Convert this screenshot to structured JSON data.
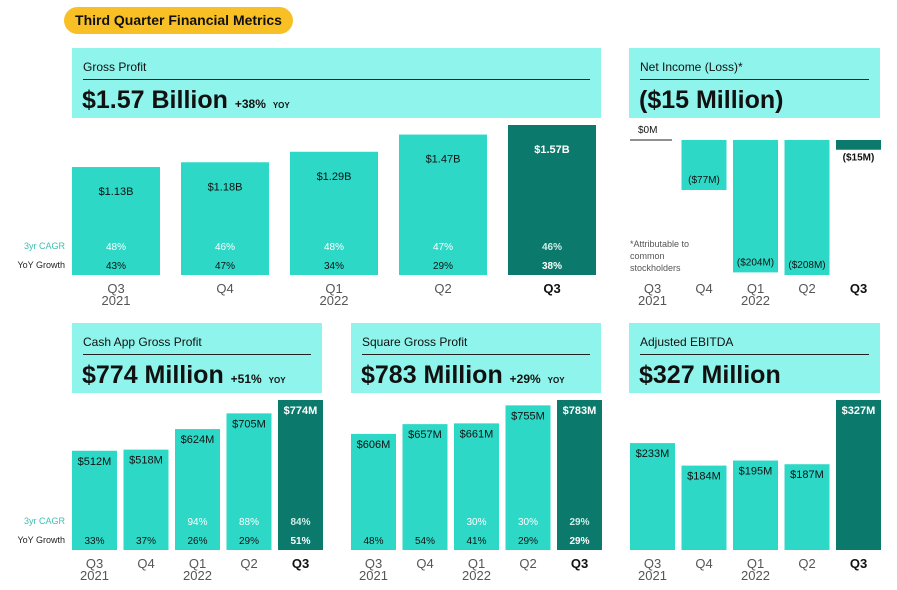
{
  "badge": "Third Quarter Financial Metrics",
  "row_labels": {
    "cagr": "3yr CAGR",
    "yoy": "YoY Growth"
  },
  "footnote": [
    "*Attributable to",
    "common",
    "stockholders"
  ],
  "colors": {
    "bar": "#2ed8c6",
    "highlight": "#0b7a6c",
    "header": "#8ef4ec",
    "badge": "#f8c024"
  },
  "cards": {
    "gross_profit": {
      "title": "Gross Profit",
      "value": "$1.57 Billion",
      "change": "+38%",
      "yoy": "YOY"
    },
    "net_income": {
      "title": "Net Income (Loss)*",
      "value": "($15 Million)",
      "zero_label": "$0M"
    },
    "cash_app": {
      "title": "Cash App Gross Profit",
      "value": "$774 Million",
      "change": "+51%",
      "yoy": "YOY"
    },
    "square": {
      "title": "Square Gross Profit",
      "value": "$783 Million",
      "change": "+29%",
      "yoy": "YOY"
    },
    "ebitda": {
      "title": "Adjusted EBITDA",
      "value": "$327 Million"
    }
  },
  "chart_data": [
    {
      "id": "gross_profit",
      "type": "bar",
      "title": "Gross Profit",
      "categories": [
        "Q3",
        "Q4",
        "Q1",
        "Q2",
        "Q3"
      ],
      "years": [
        "2021",
        "",
        "2022",
        "",
        ""
      ],
      "values": [
        1.13,
        1.18,
        1.29,
        1.47,
        1.57
      ],
      "labels": [
        "$1.13B",
        "$1.18B",
        "$1.29B",
        "$1.47B",
        "$1.57B"
      ],
      "cagr": [
        "48%",
        "46%",
        "48%",
        "47%",
        "46%"
      ],
      "yoy": [
        "43%",
        "47%",
        "34%",
        "29%",
        "38%"
      ]
    },
    {
      "id": "net_income",
      "type": "bar",
      "title": "Net Income (Loss)*",
      "categories": [
        "Q3",
        "Q4",
        "Q1",
        "Q2",
        "Q3"
      ],
      "years": [
        "2021",
        "",
        "2022",
        "",
        ""
      ],
      "values": [
        0,
        -77,
        -204,
        -208,
        -15
      ],
      "labels": [
        "",
        "($77M)",
        "($204M)",
        "($208M)",
        "($15M)"
      ]
    },
    {
      "id": "cash_app",
      "type": "bar",
      "title": "Cash App Gross Profit",
      "categories": [
        "Q3",
        "Q4",
        "Q1",
        "Q2",
        "Q3"
      ],
      "years": [
        "2021",
        "",
        "2022",
        "",
        ""
      ],
      "values": [
        512,
        518,
        624,
        705,
        774
      ],
      "labels": [
        "$512M",
        "$518M",
        "$624M",
        "$705M",
        "$774M"
      ],
      "cagr": [
        "",
        "",
        "94%",
        "88%",
        "84%"
      ],
      "yoy": [
        "33%",
        "37%",
        "26%",
        "29%",
        "51%"
      ]
    },
    {
      "id": "square",
      "type": "bar",
      "title": "Square Gross Profit",
      "categories": [
        "Q3",
        "Q4",
        "Q1",
        "Q2",
        "Q3"
      ],
      "years": [
        "2021",
        "",
        "2022",
        "",
        ""
      ],
      "values": [
        606,
        657,
        661,
        755,
        783
      ],
      "labels": [
        "$606M",
        "$657M",
        "$661M",
        "$755M",
        "$783M"
      ],
      "cagr": [
        "",
        "",
        "30%",
        "30%",
        "29%"
      ],
      "yoy": [
        "48%",
        "54%",
        "41%",
        "29%",
        "29%"
      ]
    },
    {
      "id": "ebitda",
      "type": "bar",
      "title": "Adjusted EBITDA",
      "categories": [
        "Q3",
        "Q4",
        "Q1",
        "Q2",
        "Q3"
      ],
      "years": [
        "2021",
        "",
        "2022",
        "",
        ""
      ],
      "values": [
        233,
        184,
        195,
        187,
        327
      ],
      "labels": [
        "$233M",
        "$184M",
        "$195M",
        "$187M",
        "$327M"
      ]
    }
  ]
}
